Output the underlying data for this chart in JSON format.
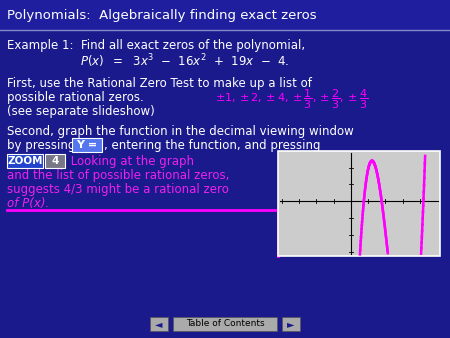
{
  "bg_color": "#1a1a8c",
  "title_bar_color": "#1e1e9e",
  "title_text": "Polynomials:  Algebraically finding exact zeros",
  "title_color": "#ffffff",
  "separator_color": "#8888cc",
  "example_line1": "Example 1:  Find all exact zeros of the polynomial,",
  "first_line1": "First, use the Rational Zero Test to make up a list of",
  "first_line2": "possible rational zeros.",
  "see_line": "(see separate slideshow)",
  "second_line1": "Second, graph the function in the decimal viewing window",
  "second_line2b": ", entering the function, and pressing",
  "y_equals_text": "Y =",
  "y_equals_bg": "#5577ee",
  "zoom_text": "ZOOM",
  "zoom_bg": "#2244cc",
  "four_text": "4",
  "four_bg": "#777788",
  "looking_text": " Looking at the graph",
  "pink_text_color": "#ee22ee",
  "magenta_color": "#ff00ff",
  "bottom_text1": "and the list of possible rational zeros,",
  "bottom_text2": "suggests 4/3 might be a rational zero",
  "bottom_text3": "of P(x).",
  "toc_text": "Table of Contents",
  "toc_bg": "#aaaaaa",
  "toc_text_color": "#000000",
  "arrow_color": "#aaaaaa",
  "graph_bg": "#cccccc",
  "white": "#ffffff"
}
